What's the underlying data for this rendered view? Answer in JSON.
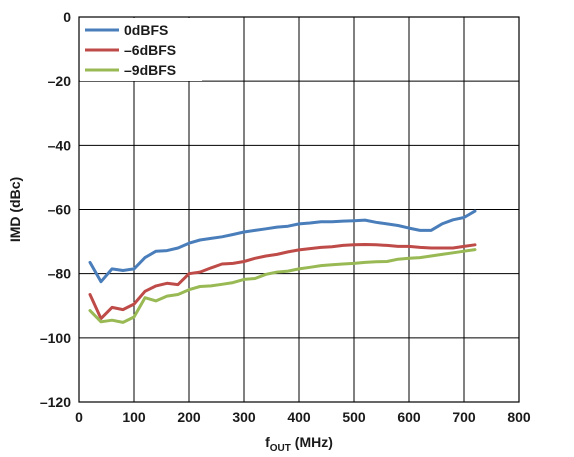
{
  "chart_data": {
    "type": "line",
    "title": "",
    "xlabel_main": "f",
    "xlabel_sub": "OUT",
    "xlabel_unit": " (MHz)",
    "ylabel": "IMD (dBc)",
    "xlim": [
      0,
      800
    ],
    "ylim": [
      -120,
      0
    ],
    "x_ticks": [
      0,
      100,
      200,
      300,
      400,
      500,
      600,
      700,
      800
    ],
    "y_ticks": [
      0,
      -20,
      -40,
      -60,
      -80,
      -100,
      -120
    ],
    "x_tick_labels": [
      "0",
      "100",
      "200",
      "300",
      "400",
      "500",
      "600",
      "700",
      "800"
    ],
    "y_tick_labels": [
      "0",
      "–20",
      "–40",
      "–60",
      "–80",
      "–100",
      "–120"
    ],
    "grid": true,
    "legend_position": "top-left",
    "series": [
      {
        "name": "0dBFS",
        "color": "#4a7ebb",
        "x": [
          20,
          40,
          60,
          80,
          100,
          120,
          140,
          160,
          180,
          200,
          220,
          240,
          260,
          280,
          300,
          320,
          340,
          360,
          380,
          400,
          420,
          440,
          460,
          480,
          500,
          520,
          540,
          560,
          580,
          600,
          620,
          640,
          660,
          680,
          700,
          720
        ],
        "y": [
          -76.5,
          -82.5,
          -78.5,
          -79,
          -78.5,
          -75,
          -73,
          -72.8,
          -72,
          -70.5,
          -69.5,
          -69,
          -68.5,
          -67.8,
          -67,
          -66.5,
          -66,
          -65.5,
          -65.2,
          -64.5,
          -64.2,
          -63.8,
          -63.8,
          -63.6,
          -63.5,
          -63.3,
          -64,
          -64.5,
          -65,
          -65.8,
          -66.5,
          -66.5,
          -64.5,
          -63.2,
          -62.5,
          -60.5
        ]
      },
      {
        "name": "–6dBFS",
        "color": "#be4b48",
        "x": [
          20,
          40,
          60,
          80,
          100,
          120,
          140,
          160,
          180,
          200,
          220,
          240,
          260,
          280,
          300,
          320,
          340,
          360,
          380,
          400,
          420,
          440,
          460,
          480,
          500,
          520,
          540,
          560,
          580,
          600,
          620,
          640,
          660,
          680,
          700,
          720
        ],
        "y": [
          -86.5,
          -94,
          -90.5,
          -91.2,
          -89.5,
          -85.5,
          -83.8,
          -83,
          -83.4,
          -80,
          -79.5,
          -78.2,
          -77,
          -76.8,
          -76.2,
          -75.2,
          -74.5,
          -74,
          -73.2,
          -72.6,
          -72.2,
          -71.8,
          -71.6,
          -71.2,
          -71,
          -70.9,
          -71,
          -71.2,
          -71.5,
          -71.5,
          -71.8,
          -72,
          -72,
          -72,
          -71.5,
          -71
        ]
      },
      {
        "name": "–9dBFS",
        "color": "#98b954",
        "x": [
          20,
          40,
          60,
          80,
          100,
          120,
          140,
          160,
          180,
          200,
          220,
          240,
          260,
          280,
          300,
          320,
          340,
          360,
          380,
          400,
          420,
          440,
          460,
          480,
          500,
          520,
          540,
          560,
          580,
          600,
          620,
          640,
          660,
          680,
          700,
          720
        ],
        "y": [
          -91.5,
          -95,
          -94.5,
          -95.2,
          -93.5,
          -87.5,
          -88.5,
          -87,
          -86.5,
          -85,
          -84,
          -83.8,
          -83.3,
          -82.8,
          -81.8,
          -81.5,
          -80.2,
          -79.5,
          -79.2,
          -78.5,
          -78,
          -77.5,
          -77.2,
          -77,
          -76.8,
          -76.5,
          -76.3,
          -76.2,
          -75.5,
          -75.2,
          -75,
          -74.5,
          -74,
          -73.5,
          -73,
          -72.5
        ]
      }
    ]
  }
}
